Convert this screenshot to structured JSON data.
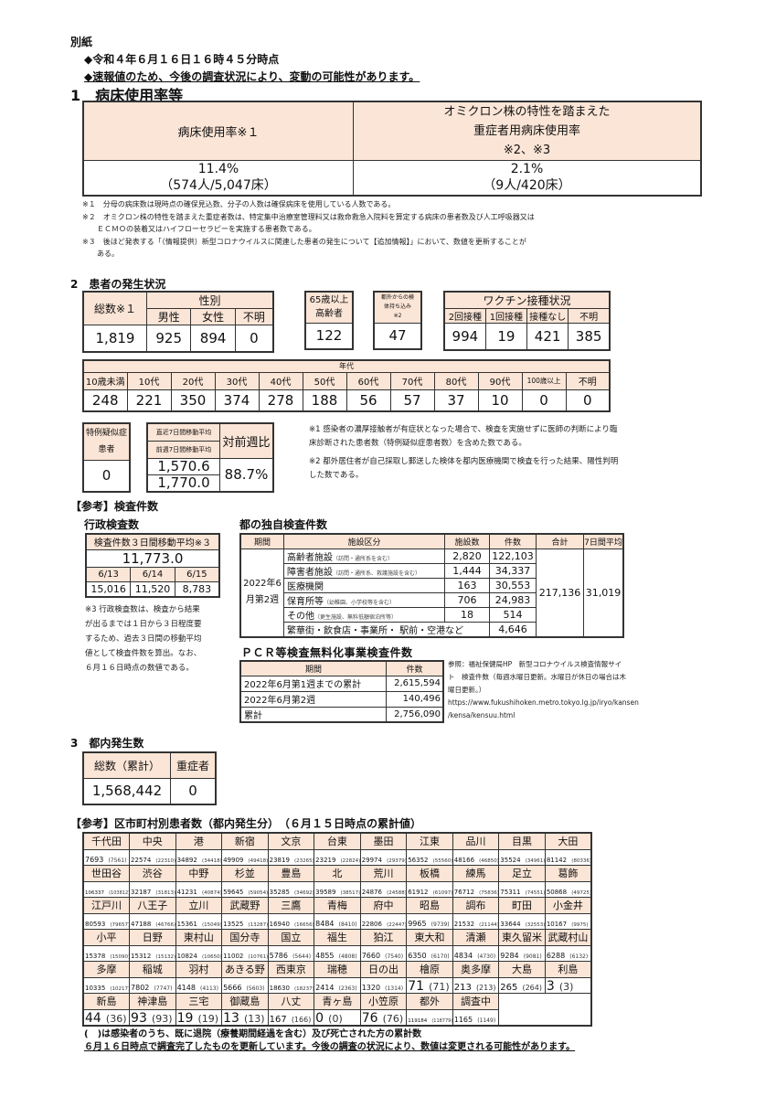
{
  "header": {
    "attachment": "別紙",
    "timestamp": "◆令和４年６月１６日１６時４５分時点",
    "disclaimer": "◆速報値のため、今後の調査状況により、変動の可能性があります。"
  },
  "section1": {
    "title": "1　病床使用率等",
    "col1_header": "病床使用率※１",
    "col2_header_line1": "オミクロン株の特性を踏まえた",
    "col2_header_line2": "重症者用病床使用率",
    "col2_header_line3": "※2、※3",
    "col1_rate": "11.4%",
    "col1_detail": "（574人/5,047床）",
    "col2_rate": "2.1%",
    "col2_detail": "（9人/420床）",
    "notes": [
      "※１　分母の病床数は現時点の確保見込数、分子の人数は確保病床を使用している人数である。",
      "※２　オミクロン株の特性を踏まえた重症者数は、特定集中治療室管理料又は救命救急入院料を算定する病床の患者数及び人工呼吸器又は",
      "　　ＥＣＭＯの装着又はハイフローセラピーを実施する患者数である。",
      "※３　後ほど発表する「（情報提供）新型コロナウイルスに関連した患者の発生について【追加情報】」において、数値を更新することが",
      "　　ある。"
    ]
  },
  "section2": {
    "title": "2　患者の発生状況",
    "total_label": "総数※１",
    "total": "1,819",
    "sex_label": "性別",
    "sex_headers": [
      "男性",
      "女性",
      "不明"
    ],
    "sex_values": [
      "925",
      "894",
      "0"
    ],
    "elderly_label1": "65歳以上",
    "elderly_label2": "高齢者",
    "elderly": "122",
    "outside_label1": "都外からの検",
    "outside_label2": "体持ち込み",
    "outside_label3": "※2",
    "outside": "47",
    "vaccine_label": "ワクチン接種状況",
    "vaccine_headers": [
      "2回接種",
      "1回接種",
      "接種なし",
      "不明"
    ],
    "vaccine_values": [
      "994",
      "19",
      "421",
      "385"
    ],
    "age_label": "年代",
    "age_headers": [
      "10歳未満",
      "10代",
      "20代",
      "30代",
      "40代",
      "50代",
      "60代",
      "70代",
      "80代",
      "90代",
      "100歳以上",
      "不明"
    ],
    "age_values": [
      "248",
      "221",
      "350",
      "374",
      "278",
      "188",
      "56",
      "57",
      "37",
      "10",
      "0",
      "0"
    ],
    "suspected_label1": "特例疑似症",
    "suspected_label2": "患者",
    "suspected": "0",
    "recent_avg_label": "直近7日間移動平均",
    "prev_avg_label": "前週7日間移動平均",
    "recent_avg": "1,570.6",
    "prev_avg": "1,770.0",
    "wow_label": "対前週比",
    "wow": "88.7%",
    "notes": [
      "※1 感染者の濃厚接触者が有症状となった場合で、検査を実施せずに医師の判断により臨",
      "床診断された患者数（特例疑似症患者数）を含めた数である。",
      "※2 都外居住者が自己採取し郵送した検体を都内医療機関で検査を行った結果、陽性判明",
      "した数である。"
    ]
  },
  "tests": {
    "title": "【参考】検査件数",
    "admin_title": "行政検査数",
    "admin_header": "検査件数３日間移動平均※３",
    "admin_avg": "11,773.0",
    "admin_dates": [
      "6/13",
      "6/14",
      "6/15"
    ],
    "admin_values": [
      "15,016",
      "11,520",
      "8,783"
    ],
    "admin_notes": [
      "※3 行政検査数は、検査から結果",
      "が出るまでは１日から３日程度要",
      "するため、過去３日間の移動平均",
      "値として検査件数を算出。なお、",
      "６月１６日時点の数値である。"
    ],
    "metro_title": "都の独自検査件数",
    "metro_headers": [
      "期間",
      "施設区分",
      "施設数",
      "件数",
      "合計",
      "7日間平均"
    ],
    "metro_period": [
      "2022年6",
      "月第2週"
    ],
    "metro_rows": [
      {
        "name": "高齢者施設",
        "sub": "（訪問・通所系を含む）",
        "facilities": "2,820",
        "count": "122,103"
      },
      {
        "name": "障害者施設",
        "sub": "（訪問・通所系、救護施設を含む）",
        "facilities": "1,444",
        "count": "34,337"
      },
      {
        "name": "医療機関",
        "sub": "",
        "facilities": "163",
        "count": "30,553"
      },
      {
        "name": "保育所等",
        "sub": "（幼稚園、小学校等を含む）",
        "facilities": "706",
        "count": "24,983"
      },
      {
        "name": "その他",
        "sub": "（更生施設、無料低額宿泊所等）",
        "facilities": "18",
        "count": "514"
      }
    ],
    "metro_last_row": {
      "name": "繁華街・飲食店・事業所・ 駅前・空港など",
      "count": "4,646"
    },
    "metro_total": "217,136",
    "metro_avg": "31,019",
    "pcr_title": "ＰＣＲ等検査無料化事業検査件数",
    "pcr_headers": [
      "期間",
      "件数"
    ],
    "pcr_rows": [
      {
        "period": "2022年6月第1週までの累計",
        "count": "2,615,594"
      },
      {
        "period": "2022年6月第2週",
        "count": "140,496"
      },
      {
        "period": "累計",
        "count": "2,756,090"
      }
    ],
    "pcr_ref": [
      "参照：福祉保健局HP　新型コロナウイルス検査情報サイ",
      "ト　検査件数（毎週水曜日更新。水曜日が休日の場合は木",
      "曜日更新。）",
      "https://www.fukushihoken.metro.tokyo.lg.jp/iryo/kansen",
      "/kensa/kensuu.html"
    ]
  },
  "section3": {
    "title": "3　都内発生数",
    "total_label": "総数（累計）",
    "severe_label": "重症者",
    "total": "1,568,442",
    "severe": "0"
  },
  "municipal": {
    "title": "【参考】区市町村別患者数（都内発生分）　（６月１５日時点の累計値）",
    "rows": [
      [
        [
          "千代田",
          "7693",
          "(7561)"
        ],
        [
          "中央",
          "22574",
          "(22310)"
        ],
        [
          "港",
          "34892",
          "(34418)"
        ],
        [
          "新宿",
          "49909",
          "(49418)"
        ],
        [
          "文京",
          "23819",
          "(23265)"
        ],
        [
          "台東",
          "23219",
          "(22824)"
        ],
        [
          "墨田",
          "29974",
          "(29379)"
        ],
        [
          "江東",
          "56352",
          "(55560)"
        ],
        [
          "品川",
          "48166",
          "(46850)"
        ],
        [
          "目黒",
          "35524",
          "(34961)"
        ],
        [
          "大田",
          "81142",
          "(80336)"
        ]
      ],
      [
        [
          "世田谷",
          "106337",
          "(103812)"
        ],
        [
          "渋谷",
          "32187",
          "(31813)"
        ],
        [
          "中野",
          "41231",
          "(40874)"
        ],
        [
          "杉並",
          "59645",
          "(59054)"
        ],
        [
          "豊島",
          "35285",
          "(34692)"
        ],
        [
          "北",
          "39589",
          "(38517)"
        ],
        [
          "荒川",
          "24876",
          "(24588)"
        ],
        [
          "板橋",
          "61912",
          "(61097)"
        ],
        [
          "練馬",
          "76712",
          "(75836)"
        ],
        [
          "足立",
          "75311",
          "(74551)"
        ],
        [
          "葛飾",
          "50868",
          "(49725)"
        ]
      ],
      [
        [
          "江戸川",
          "80593",
          "(79657)"
        ],
        [
          "八王子",
          "47188",
          "(46766)"
        ],
        [
          "立川",
          "15361",
          "(15049)"
        ],
        [
          "武蔵野",
          "13525",
          "(13287)"
        ],
        [
          "三鷹",
          "16940",
          "(16656)"
        ],
        [
          "青梅",
          "8484",
          "(8410)"
        ],
        [
          "府中",
          "22806",
          "(22447)"
        ],
        [
          "昭島",
          "9965",
          "(9739)"
        ],
        [
          "調布",
          "21532",
          "(21144)"
        ],
        [
          "町田",
          "33644",
          "(32553)"
        ],
        [
          "小金井",
          "10167",
          "(9975)"
        ]
      ],
      [
        [
          "小平",
          "15378",
          "(15090)"
        ],
        [
          "日野",
          "15312",
          "(15132)"
        ],
        [
          "東村山",
          "10824",
          "(10650)"
        ],
        [
          "国分寺",
          "11002",
          "(10761)"
        ],
        [
          "国立",
          "5786",
          "(5644)"
        ],
        [
          "福生",
          "4855",
          "(4808)"
        ],
        [
          "狛江",
          "7660",
          "(7540)"
        ],
        [
          "東大和",
          "6350",
          "(6170)"
        ],
        [
          "清瀬",
          "4834",
          "(4730)"
        ],
        [
          "東久留米",
          "9284",
          "(9081)"
        ],
        [
          "武蔵村山",
          "6288",
          "(6132)"
        ]
      ],
      [
        [
          "多摩",
          "10335",
          "(10217)"
        ],
        [
          "稲城",
          "7802",
          "(7747)"
        ],
        [
          "羽村",
          "4148",
          "(4113)"
        ],
        [
          "あきる野",
          "5666",
          "(5603)"
        ],
        [
          "西東京",
          "18630",
          "(18237)"
        ],
        [
          "瑞穂",
          "2414",
          "(2363)"
        ],
        [
          "日の出",
          "1320",
          "(1314)"
        ],
        [
          "檜原",
          "71",
          "(71)"
        ],
        [
          "奥多摩",
          "213",
          "(213)"
        ],
        [
          "大島",
          "265",
          "(264)"
        ],
        [
          "利島",
          "3",
          "(3)"
        ]
      ],
      [
        [
          "新島",
          "44",
          "(36)"
        ],
        [
          "神津島",
          "93",
          "(93)"
        ],
        [
          "三宅",
          "19",
          "(19)"
        ],
        [
          "御蔵島",
          "13",
          "(13)"
        ],
        [
          "八丈",
          "167",
          "(166)"
        ],
        [
          "青ヶ島",
          "0",
          "(0)"
        ],
        [
          "小笠原",
          "76",
          "(76)"
        ],
        [
          "都外",
          "119184",
          "(118779)"
        ],
        [
          "調査中",
          "1165",
          "(1149)"
        ]
      ]
    ],
    "footnote": "(　)は感染者のうち、既に退院（療養期間経過を含む）及び死亡された方の累計数",
    "update_note": "６月１６日時点で調査完了したものを更新しています。今後の調査の状況により、数値は変更される可能性があります。"
  },
  "colors": {
    "header_fill": "#fbe5d6",
    "border": "#333333"
  }
}
